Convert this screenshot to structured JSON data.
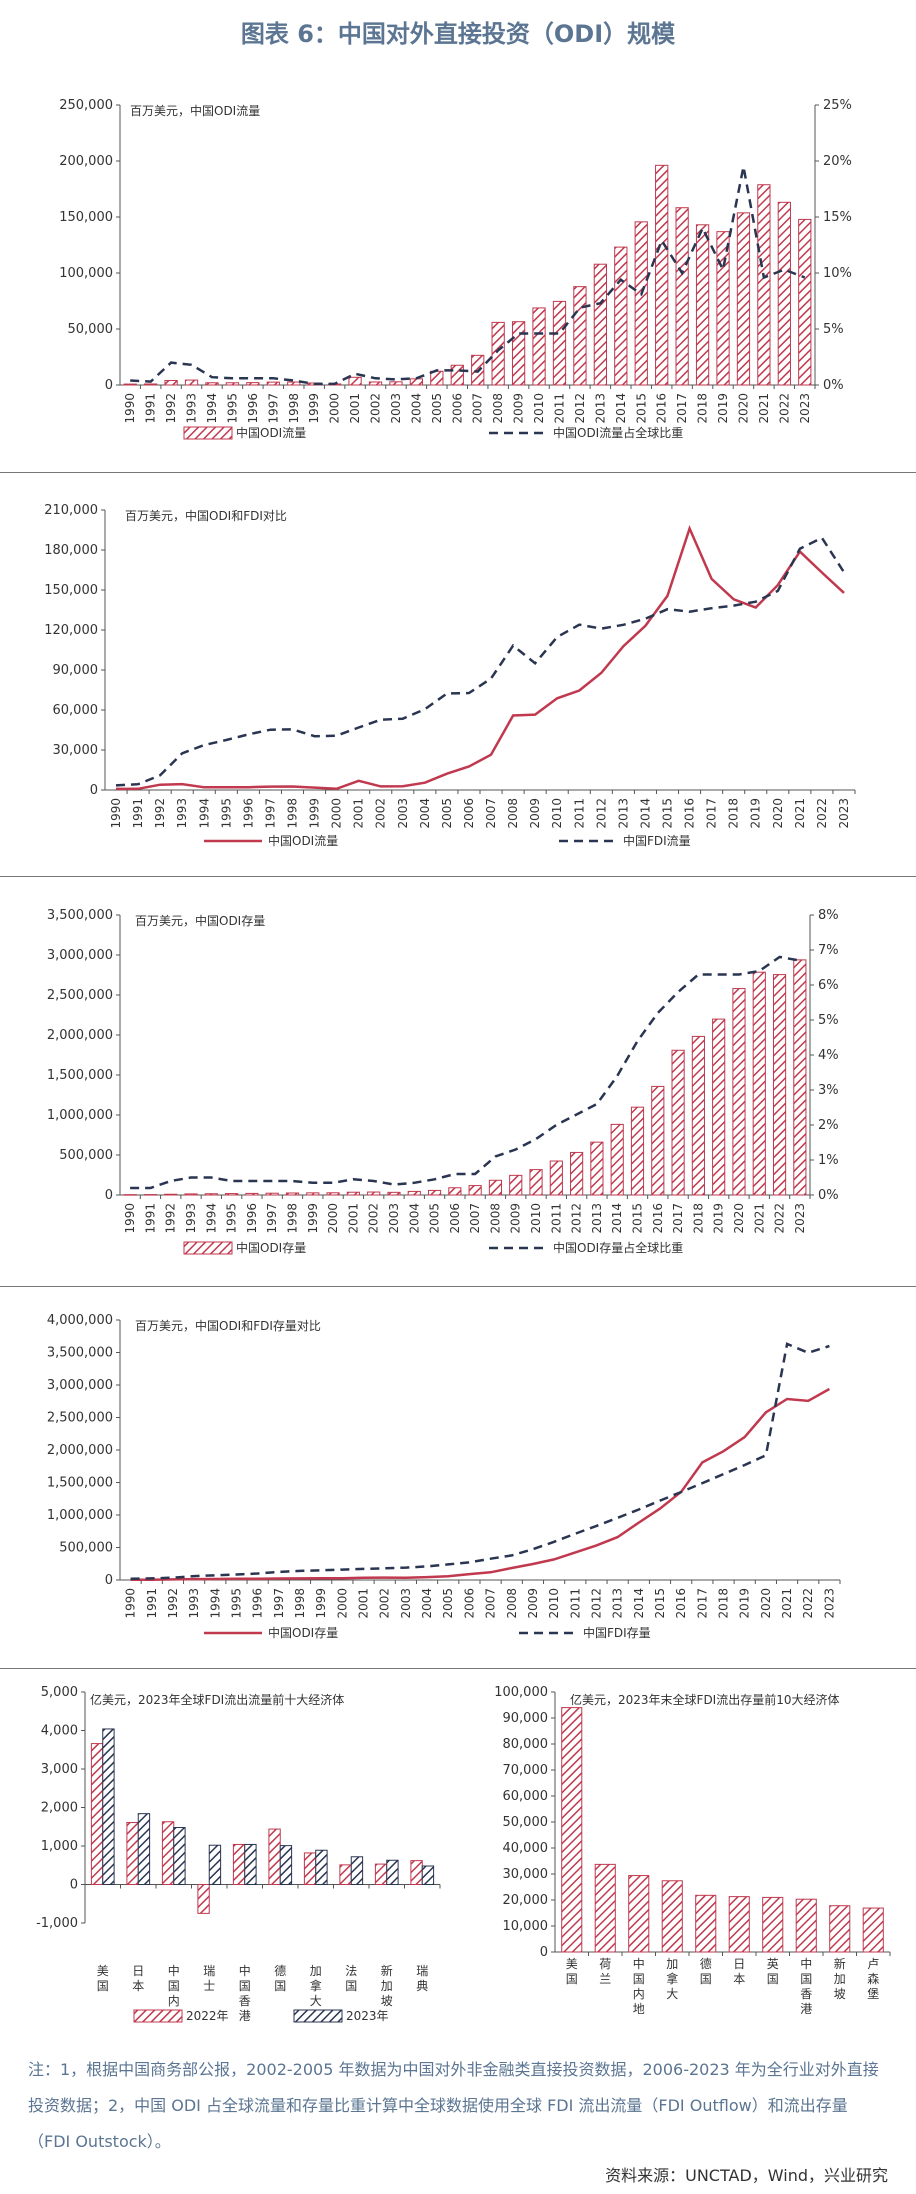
{
  "page": {
    "title": "图表 6：中国对外直接投资（ODI）规模",
    "note": "注：1，根据中国商务部公报，2002-2005 年数据为中国对外非金融类直接投资数据，2006-2023 年为全行业对外直接投资数据；2，中国 ODI 占全球流量和存量比重计算中全球数据使用全球 FDI 流出流量（FDI Outflow）和流出存量（FDI Outstock）。",
    "source": "资料来源：UNCTAD，Wind，兴业研究"
  },
  "colors": {
    "accent_red": "#c0394e",
    "accent_navy": "#2a3552",
    "title_blue": "#5b7592"
  },
  "chart_data": [
    {
      "id": "c1",
      "type": "bar",
      "unit_label": "百万美元，中国ODI流量",
      "categories": [
        "1990",
        "1991",
        "1992",
        "1993",
        "1994",
        "1995",
        "1996",
        "1997",
        "1998",
        "1999",
        "2000",
        "2001",
        "2002",
        "2003",
        "2004",
        "2005",
        "2006",
        "2007",
        "2008",
        "2009",
        "2010",
        "2011",
        "2012",
        "2013",
        "2014",
        "2015",
        "2016",
        "2017",
        "2018",
        "2019",
        "2020",
        "2021",
        "2022",
        "2023"
      ],
      "ylim": [
        0,
        250000
      ],
      "yticks": [
        "0",
        "50,000",
        "100,000",
        "150,000",
        "200,000",
        "250,000"
      ],
      "y2lim": [
        0,
        25
      ],
      "y2ticks": [
        "0%",
        "5%",
        "10%",
        "15%",
        "20%",
        "25%"
      ],
      "series": [
        {
          "name": "中国ODI流量",
          "kind": "bar",
          "values": [
            830,
            913,
            4000,
            4400,
            2000,
            2000,
            2114,
            2562,
            2634,
            1774,
            916,
            6885,
            2700,
            2850,
            5500,
            12261,
            17634,
            26506,
            55907,
            56530,
            68811,
            74654,
            87804,
            107844,
            123120,
            145667,
            196149,
            158290,
            143037,
            136905,
            153710,
            178819,
            163121,
            147850
          ]
        },
        {
          "name": "中国ODI流量占全球比重",
          "kind": "line",
          "axis": "y2",
          "values": [
            0.4,
            0.3,
            2.0,
            1.8,
            0.7,
            0.6,
            0.6,
            0.6,
            0.4,
            0.1,
            0.1,
            1.0,
            0.6,
            0.5,
            0.6,
            1.3,
            1.3,
            1.2,
            3.1,
            4.6,
            4.6,
            4.6,
            6.9,
            7.3,
            9.4,
            8.1,
            12.9,
            10.0,
            14.0,
            10.3,
            19.5,
            9.6,
            10.3,
            9.6
          ]
        }
      ]
    },
    {
      "id": "c2",
      "type": "line",
      "unit_label": "百万美元，中国ODI和FDI对比",
      "categories": [
        "1990",
        "1991",
        "1992",
        "1993",
        "1994",
        "1995",
        "1996",
        "1997",
        "1998",
        "1999",
        "2000",
        "2001",
        "2002",
        "2003",
        "2004",
        "2005",
        "2006",
        "2007",
        "2008",
        "2009",
        "2010",
        "2011",
        "2012",
        "2013",
        "2014",
        "2015",
        "2016",
        "2017",
        "2018",
        "2019",
        "2020",
        "2021",
        "2022",
        "2023"
      ],
      "ylim": [
        0,
        210000
      ],
      "yticks": [
        "0",
        "30,000",
        "60,000",
        "90,000",
        "120,000",
        "150,000",
        "180,000",
        "210,000"
      ],
      "series": [
        {
          "name": "中国ODI流量",
          "kind": "line",
          "values": [
            830,
            913,
            4000,
            4400,
            2000,
            2000,
            2114,
            2562,
            2634,
            1774,
            916,
            6885,
            2700,
            2850,
            5500,
            12261,
            17634,
            26506,
            55907,
            56530,
            68811,
            74654,
            87804,
            107844,
            123120,
            145667,
            196149,
            158290,
            143037,
            136905,
            153710,
            178819,
            163121,
            147850
          ]
        },
        {
          "name": "中国FDI流量",
          "kind": "line",
          "dash": true,
          "values": [
            3487,
            4366,
            11008,
            27515,
            33767,
            37521,
            41726,
            45257,
            45463,
            40319,
            40715,
            46878,
            52743,
            53505,
            60630,
            72406,
            72715,
            83521,
            108312,
            95000,
            114734,
            123985,
            121080,
            123911,
            128500,
            135577,
            133710,
            136315,
            138305,
            141225,
            149342,
            180957,
            189132,
            163253
          ]
        }
      ]
    },
    {
      "id": "c3",
      "type": "bar",
      "unit_label": "百万美元，中国ODI存量",
      "categories": [
        "1990",
        "1991",
        "1992",
        "1993",
        "1994",
        "1995",
        "1996",
        "1997",
        "1998",
        "1999",
        "2000",
        "2001",
        "2002",
        "2003",
        "2004",
        "2005",
        "2006",
        "2007",
        "2008",
        "2009",
        "2010",
        "2011",
        "2012",
        "2013",
        "2014",
        "2015",
        "2016",
        "2017",
        "2018",
        "2019",
        "2020",
        "2021",
        "2022",
        "2023"
      ],
      "ylim": [
        0,
        3500000
      ],
      "yticks": [
        "0",
        "500,000",
        "1,000,000",
        "1,500,000",
        "2,000,000",
        "2,500,000",
        "3,000,000",
        "3,500,000"
      ],
      "y2lim": [
        0,
        8
      ],
      "y2ticks": [
        "0%",
        "1%",
        "2%",
        "3%",
        "4%",
        "5%",
        "6%",
        "7%",
        "8%"
      ],
      "series": [
        {
          "name": "中国ODI存量",
          "kind": "bar",
          "values": [
            4455,
            5368,
            9368,
            13768,
            15768,
            17768,
            19882,
            22444,
            25078,
            26853,
            27768,
            34654,
            37172,
            33222,
            44777,
            57206,
            90630,
            117911,
            183971,
            245755,
            317211,
            424781,
            531941,
            660480,
            882640,
            1097865,
            1357390,
            1809037,
            1982266,
            2198881,
            2580658,
            2785150,
            2754850,
            2939100
          ]
        },
        {
          "name": "中国ODI存量占全球比重",
          "kind": "line",
          "axis": "y2",
          "values": [
            0.2,
            0.2,
            0.4,
            0.5,
            0.5,
            0.4,
            0.4,
            0.4,
            0.4,
            0.35,
            0.35,
            0.45,
            0.4,
            0.3,
            0.35,
            0.45,
            0.6,
            0.6,
            1.1,
            1.3,
            1.6,
            2.0,
            2.3,
            2.6,
            3.4,
            4.4,
            5.2,
            5.8,
            6.3,
            6.3,
            6.3,
            6.4,
            6.8,
            6.7
          ]
        }
      ]
    },
    {
      "id": "c4",
      "type": "line",
      "unit_label": "百万美元，中国ODI和FDI存量对比",
      "categories": [
        "1990",
        "1991",
        "1992",
        "1993",
        "1994",
        "1995",
        "1996",
        "1997",
        "1998",
        "1999",
        "2000",
        "2001",
        "2002",
        "2003",
        "2004",
        "2005",
        "2006",
        "2007",
        "2008",
        "2009",
        "2010",
        "2011",
        "2012",
        "2013",
        "2014",
        "2015",
        "2016",
        "2017",
        "2018",
        "2019",
        "2020",
        "2021",
        "2022",
        "2023"
      ],
      "ylim": [
        0,
        4000000
      ],
      "yticks": [
        "0",
        "500,000",
        "1,000,000",
        "1,500,000",
        "2,000,000",
        "2,500,000",
        "3,000,000",
        "3,500,000",
        "4,000,000"
      ],
      "series": [
        {
          "name": "中国ODI存量",
          "kind": "line",
          "values": [
            4455,
            5368,
            9368,
            13768,
            15768,
            17768,
            19882,
            22444,
            25078,
            26853,
            27768,
            34654,
            37172,
            33222,
            44777,
            57206,
            90630,
            117911,
            183971,
            245755,
            317211,
            424781,
            531941,
            660480,
            882640,
            1097865,
            1357390,
            1809037,
            1982266,
            2198881,
            2580658,
            2785150,
            2754850,
            2939100
          ]
        },
        {
          "name": "中国FDI存量",
          "kind": "line",
          "dash": true,
          "values": [
            20691,
            25000,
            35000,
            60000,
            72000,
            85000,
            100000,
            125000,
            140000,
            150000,
            160000,
            170000,
            180000,
            190000,
            210000,
            240000,
            272094,
            327087,
            378083,
            473083,
            587817,
            711802,
            832882,
            956793,
            1085293,
            1220903,
            1354404,
            1490933,
            1628993,
            1769488,
            1918828,
            3633010,
            3495000,
            3600000
          ]
        }
      ]
    },
    {
      "id": "c5",
      "type": "bar",
      "unit_label": "亿美元，2023年全球FDI流出流量前十大经济体",
      "categories": [
        "美国",
        "日本",
        "中国内地",
        "瑞士",
        "中国香港",
        "德国",
        "加拿大",
        "法国",
        "新加坡",
        "瑞典"
      ],
      "ylim": [
        -1000,
        5000
      ],
      "yticks": [
        "-1,000",
        "0",
        "1,000",
        "2,000",
        "3,000",
        "4,000",
        "5,000"
      ],
      "series": [
        {
          "name": "2022年",
          "kind": "bar",
          "values": [
            3660,
            1610,
            1630,
            -750,
            1040,
            1440,
            820,
            510,
            530,
            620
          ]
        },
        {
          "name": "2023年",
          "kind": "bar",
          "values": [
            4040,
            1840,
            1480,
            1020,
            1040,
            1010,
            890,
            720,
            630,
            480
          ]
        }
      ]
    },
    {
      "id": "c6",
      "type": "bar",
      "unit_label": "亿美元，2023年末全球FDI流出存量前10大经济体",
      "categories": [
        "美国",
        "荷兰",
        "中国内地",
        "加拿大",
        "德国",
        "日本",
        "英国",
        "中国香港",
        "新加坡",
        "卢森堡"
      ],
      "ylim": [
        0,
        100000
      ],
      "yticks": [
        "0",
        "10,000",
        "20,000",
        "30,000",
        "40,000",
        "50,000",
        "60,000",
        "70,000",
        "80,000",
        "90,000",
        "100,000"
      ],
      "series": [
        {
          "name": "2023年末FDI流出存量",
          "kind": "bar",
          "values": [
            94000,
            33700,
            29400,
            27400,
            21800,
            21300,
            21000,
            20300,
            17800,
            16900
          ]
        }
      ]
    }
  ]
}
